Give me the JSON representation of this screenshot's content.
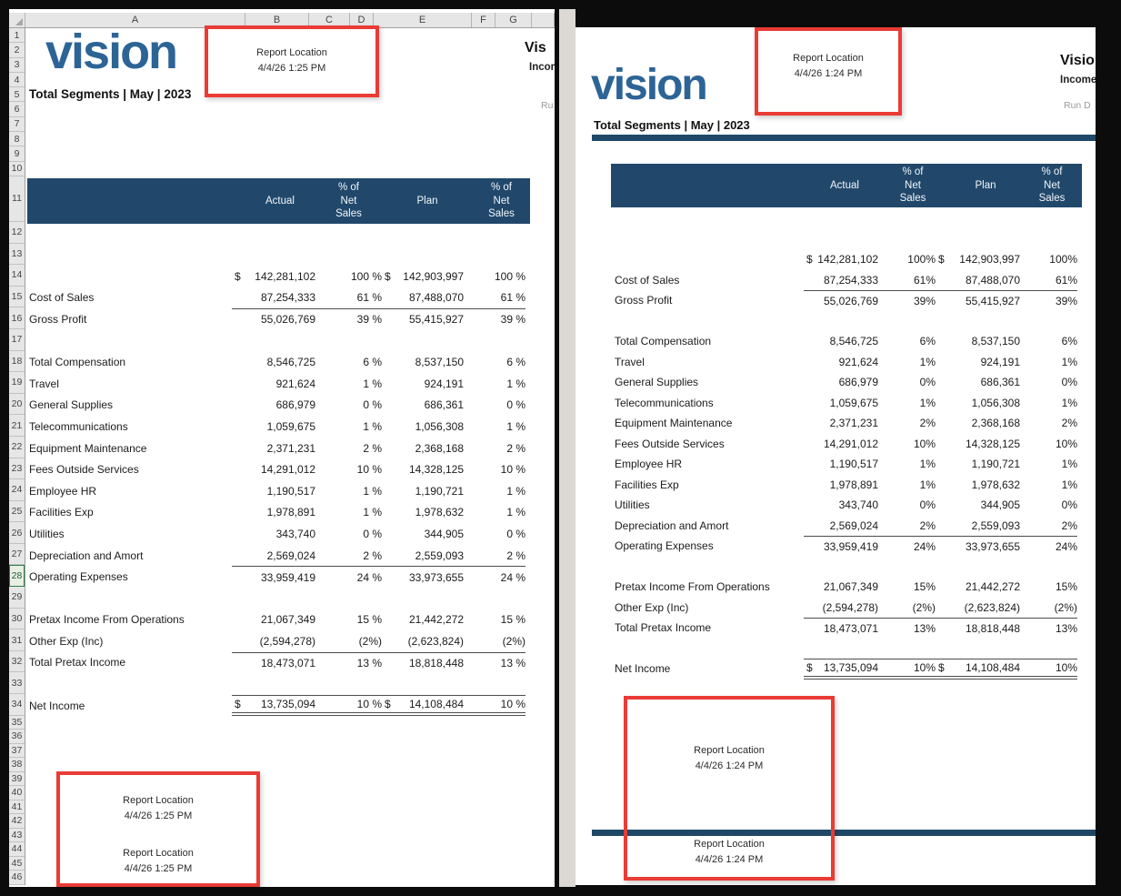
{
  "colors": {
    "band_blue": "#21486b",
    "logo_blue": "#2d6496",
    "annotation_red": "#ea3b35",
    "rule_blue": "#1f4868"
  },
  "left_panel": {
    "kind": "excel-worksheet",
    "column_headers": [
      "A",
      "B",
      "C",
      "D",
      "E",
      "F",
      "G"
    ],
    "row_count": 46,
    "selected_row": "28",
    "logo_text": "vision",
    "report_subtitle": "Total Segments | May | 2023",
    "clipped_header": {
      "title": "Vis",
      "subtitle": "Incor",
      "run_label": "Ru"
    },
    "annotation_top": {
      "line1": "Report Location",
      "line2": "4/4/26 1:25 PM"
    },
    "annotations_bottom": [
      {
        "line1": "Report Location",
        "line2": "4/4/26 1:25 PM"
      },
      {
        "line1": "Report Location",
        "line2": "4/4/26 1:25 PM"
      }
    ],
    "table": {
      "header": {
        "actual": "Actual",
        "pct1": "% of Net Sales",
        "plan": "Plan",
        "pct2": "% of Net Sales"
      },
      "rows": [
        {
          "l": "",
          "d1": "$",
          "a": "142,281,102",
          "p1": "100 %",
          "d2": "$",
          "pl": "142,903,997",
          "p2": "100 %"
        },
        {
          "l": "Cost of Sales",
          "a": "87,254,333",
          "p1": "61 %",
          "pl": "87,488,070",
          "p2": "61 %"
        },
        {
          "l": "Gross Profit",
          "a": "55,026,769",
          "p1": "39 %",
          "pl": "55,415,927",
          "p2": "39 %",
          "top": true
        },
        {
          "spacer": true
        },
        {
          "l": "Total Compensation",
          "a": "8,546,725",
          "p1": "6 %",
          "pl": "8,537,150",
          "p2": "6 %"
        },
        {
          "l": "Travel",
          "a": "921,624",
          "p1": "1 %",
          "pl": "924,191",
          "p2": "1 %"
        },
        {
          "l": "General Supplies",
          "a": "686,979",
          "p1": "0 %",
          "pl": "686,361",
          "p2": "0 %"
        },
        {
          "l": "Telecommunications",
          "a": "1,059,675",
          "p1": "1 %",
          "pl": "1,056,308",
          "p2": "1 %"
        },
        {
          "l": "Equipment Maintenance",
          "a": "2,371,231",
          "p1": "2 %",
          "pl": "2,368,168",
          "p2": "2 %"
        },
        {
          "l": "Fees Outside Services",
          "a": "14,291,012",
          "p1": "10 %",
          "pl": "14,328,125",
          "p2": "10 %"
        },
        {
          "l": "Employee HR",
          "a": "1,190,517",
          "p1": "1 %",
          "pl": "1,190,721",
          "p2": "1 %"
        },
        {
          "l": "Facilities Exp",
          "a": "1,978,891",
          "p1": "1 %",
          "pl": "1,978,632",
          "p2": "1 %"
        },
        {
          "l": "Utilities",
          "a": "343,740",
          "p1": "0 %",
          "pl": "344,905",
          "p2": "0 %"
        },
        {
          "l": "Depreciation and Amort",
          "a": "2,569,024",
          "p1": "2 %",
          "pl": "2,559,093",
          "p2": "2 %"
        },
        {
          "l": "Operating Expenses",
          "a": "33,959,419",
          "p1": "24 %",
          "pl": "33,973,655",
          "p2": "24 %",
          "top": true
        },
        {
          "spacer": true
        },
        {
          "l": "Pretax Income From Operations",
          "a": "21,067,349",
          "p1": "15 %",
          "pl": "21,442,272",
          "p2": "15 %"
        },
        {
          "l": "Other Exp (Inc)",
          "a": "(2,594,278)",
          "p1": "(2%)",
          "pl": "(2,623,824)",
          "p2": "(2%)"
        },
        {
          "l": "Total Pretax Income",
          "a": "18,473,071",
          "p1": "13 %",
          "pl": "18,818,448",
          "p2": "13 %",
          "top": true
        },
        {
          "spacer": true
        },
        {
          "l": "Net Income",
          "d1": "$",
          "a": "13,735,094",
          "p1": "10 %",
          "d2": "$",
          "pl": "14,108,484",
          "p2": "10 %",
          "top": true,
          "dbl": true
        }
      ]
    }
  },
  "right_panel": {
    "kind": "report-preview",
    "logo_text": "vision",
    "report_subtitle": "Total Segments | May | 2023",
    "clipped_header": {
      "title": "Visio",
      "subtitle": "Income",
      "run_label": "Run D"
    },
    "annotation_top": {
      "line1": "Report Location",
      "line2": "4/4/26 1:24 PM"
    },
    "annotations_bottom": [
      {
        "line1": "Report Location",
        "line2": "4/4/26 1:24 PM"
      },
      {
        "line1": "Report Location",
        "line2": "4/4/26 1:24 PM"
      }
    ],
    "table": {
      "header": {
        "actual": "Actual",
        "pct1": "% of Net Sales",
        "plan": "Plan",
        "pct2": "% of Net Sales"
      },
      "rows": [
        {
          "l": "",
          "d1": "$",
          "a": "142,281,102",
          "p1": "100%",
          "d2": "$",
          "pl": "142,903,997",
          "p2": "100%"
        },
        {
          "l": "Cost of Sales",
          "a": "87,254,333",
          "p1": "61%",
          "pl": "87,488,070",
          "p2": "61%"
        },
        {
          "l": "Gross Profit",
          "a": "55,026,769",
          "p1": "39%",
          "pl": "55,415,927",
          "p2": "39%",
          "top": true
        },
        {
          "spacer": true
        },
        {
          "l": "Total Compensation",
          "a": "8,546,725",
          "p1": "6%",
          "pl": "8,537,150",
          "p2": "6%"
        },
        {
          "l": "Travel",
          "a": "921,624",
          "p1": "1%",
          "pl": "924,191",
          "p2": "1%"
        },
        {
          "l": "General Supplies",
          "a": "686,979",
          "p1": "0%",
          "pl": "686,361",
          "p2": "0%"
        },
        {
          "l": "Telecommunications",
          "a": "1,059,675",
          "p1": "1%",
          "pl": "1,056,308",
          "p2": "1%"
        },
        {
          "l": "Equipment Maintenance",
          "a": "2,371,231",
          "p1": "2%",
          "pl": "2,368,168",
          "p2": "2%"
        },
        {
          "l": "Fees Outside Services",
          "a": "14,291,012",
          "p1": "10%",
          "pl": "14,328,125",
          "p2": "10%"
        },
        {
          "l": "Employee HR",
          "a": "1,190,517",
          "p1": "1%",
          "pl": "1,190,721",
          "p2": "1%"
        },
        {
          "l": "Facilities Exp",
          "a": "1,978,891",
          "p1": "1%",
          "pl": "1,978,632",
          "p2": "1%"
        },
        {
          "l": "Utilities",
          "a": "343,740",
          "p1": "0%",
          "pl": "344,905",
          "p2": "0%"
        },
        {
          "l": "Depreciation and Amort",
          "a": "2,569,024",
          "p1": "2%",
          "pl": "2,559,093",
          "p2": "2%"
        },
        {
          "l": "Operating Expenses",
          "a": "33,959,419",
          "p1": "24%",
          "pl": "33,973,655",
          "p2": "24%",
          "top": true
        },
        {
          "spacer": true
        },
        {
          "l": "Pretax Income From Operations",
          "a": "21,067,349",
          "p1": "15%",
          "pl": "21,442,272",
          "p2": "15%"
        },
        {
          "l": "Other Exp (Inc)",
          "a": "(2,594,278)",
          "p1": "(2%)",
          "pl": "(2,623,824)",
          "p2": "(2%)"
        },
        {
          "l": "Total Pretax Income",
          "a": "18,473,071",
          "p1": "13%",
          "pl": "18,818,448",
          "p2": "13%",
          "top": true
        },
        {
          "spacer": true
        },
        {
          "l": "Net Income",
          "d1": "$",
          "a": "13,735,094",
          "p1": "10%",
          "d2": "$",
          "pl": "14,108,484",
          "p2": "10%",
          "top": true,
          "dbl": true
        }
      ]
    }
  }
}
